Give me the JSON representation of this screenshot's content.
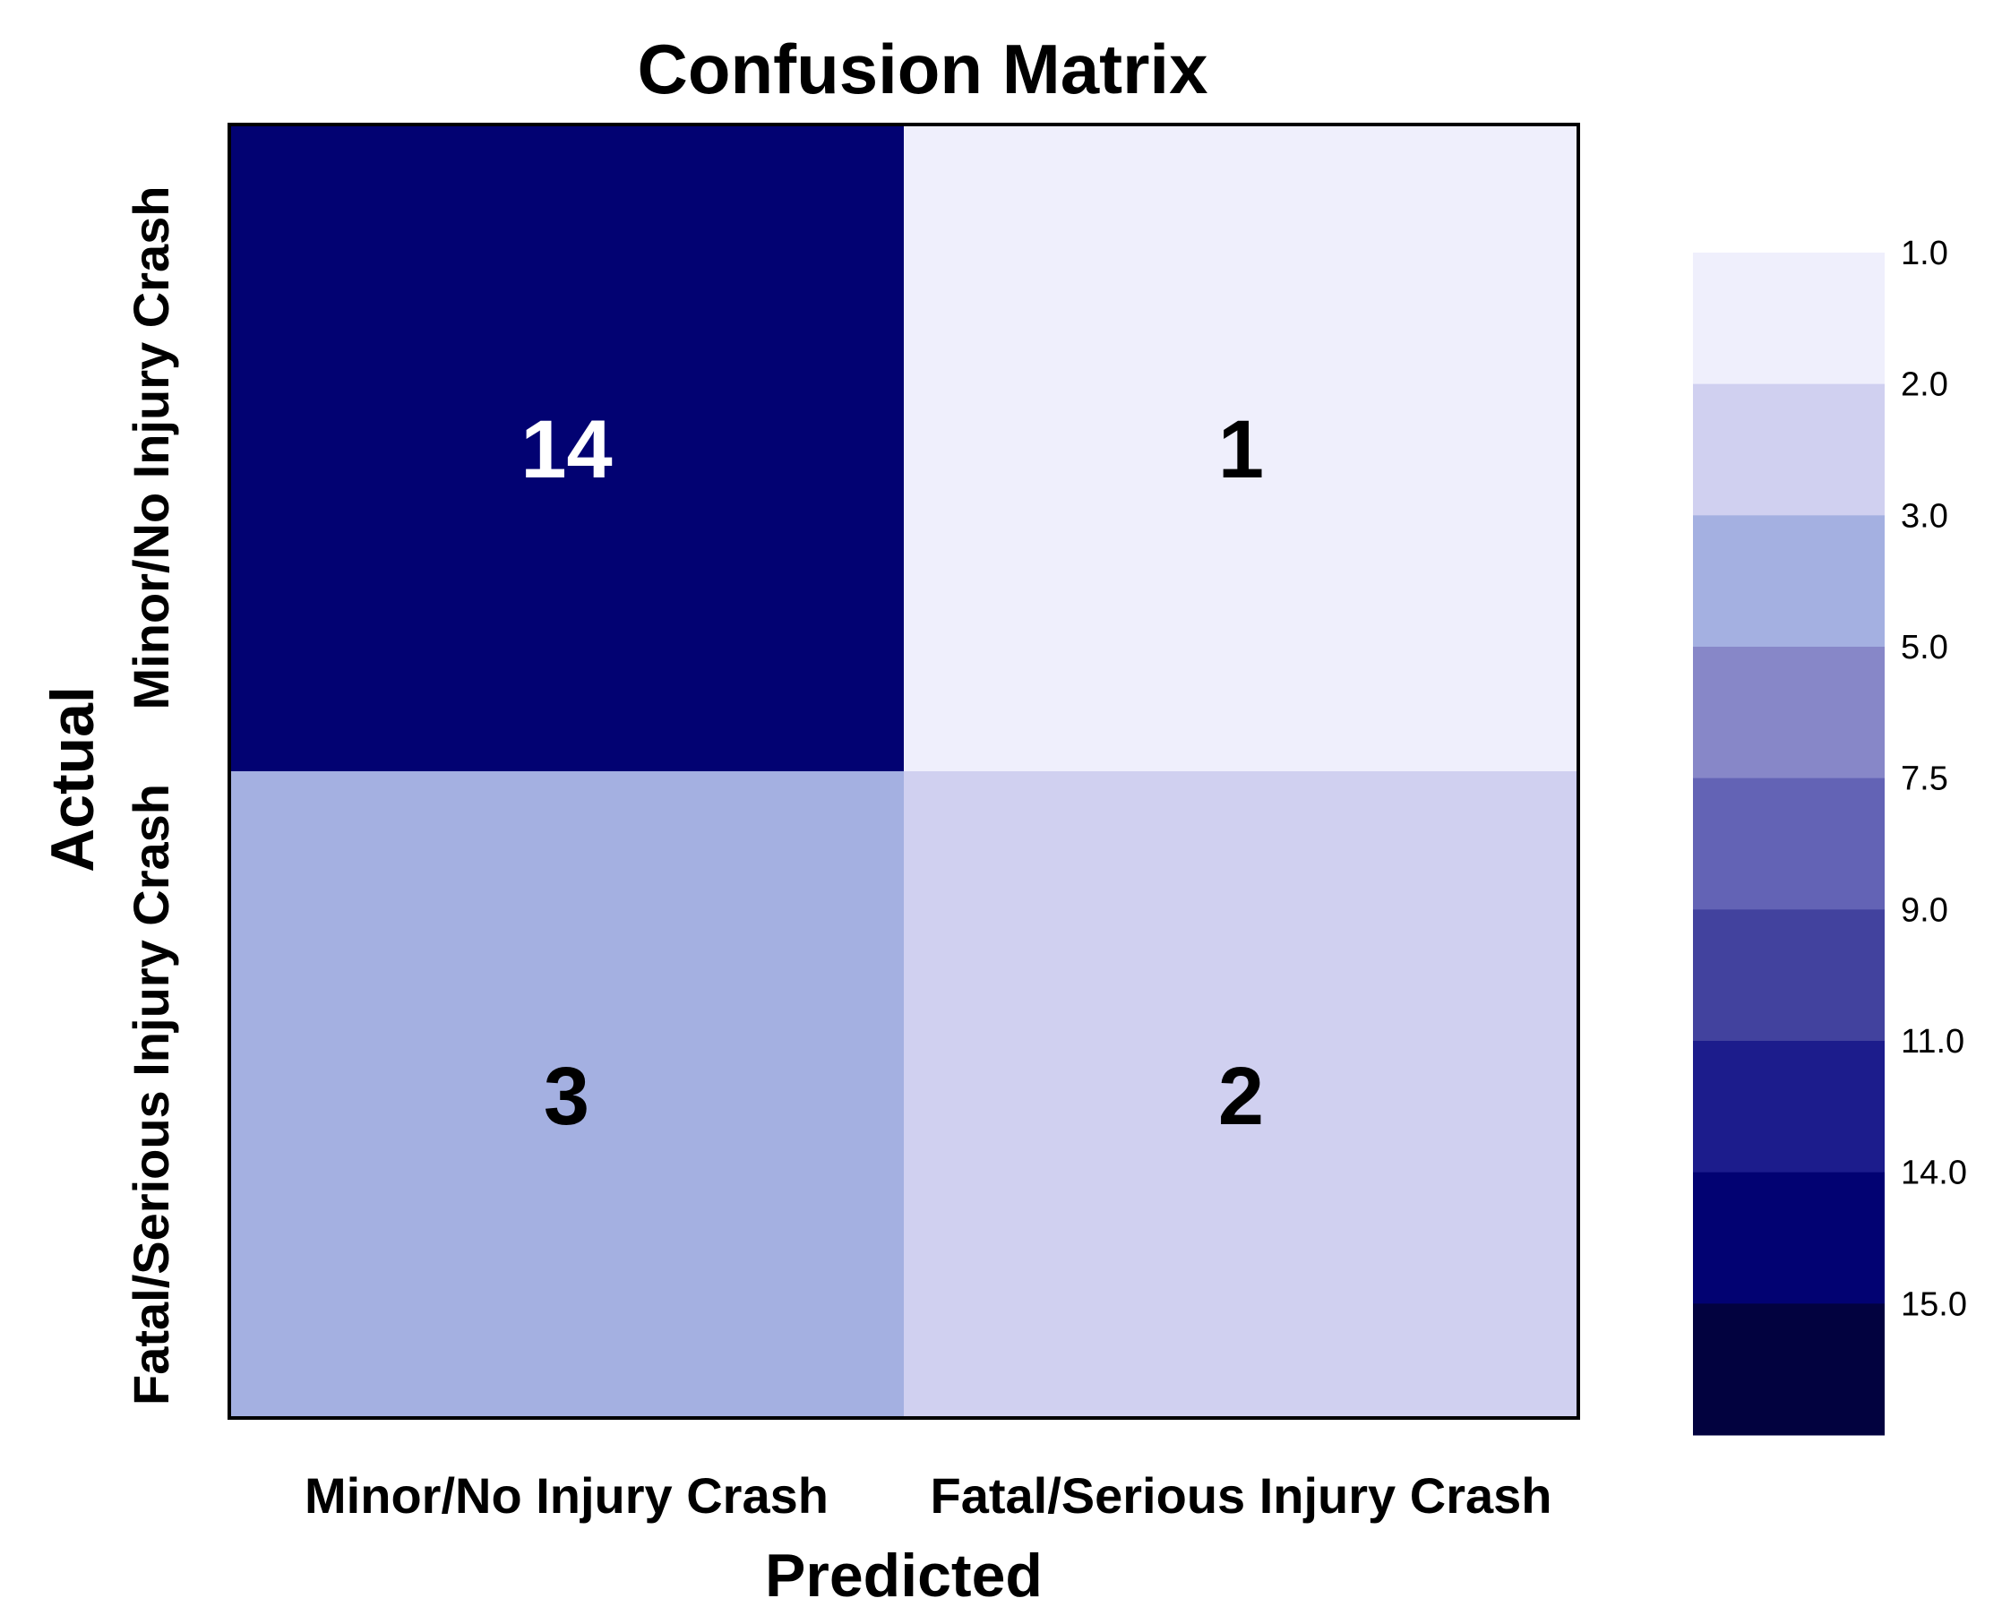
{
  "chart_data": {
    "type": "heatmap",
    "title": "Confusion Matrix",
    "xlabel": "Predicted",
    "ylabel": "Actual",
    "x_categories": [
      "Minor/No Injury Crash",
      "Fatal/Serious Injury Crash"
    ],
    "y_categories": [
      "Minor/No Injury Crash",
      "Fatal/Serious Injury Crash"
    ],
    "values": [
      [
        14,
        1
      ],
      [
        3,
        2
      ]
    ],
    "colorbar": {
      "labels": [
        "1.0",
        "2.0",
        "3.0",
        "5.0",
        "7.5",
        "9.0",
        "11.0",
        "14.0",
        "15.0"
      ],
      "colors": [
        "#efeffc",
        "#d0d0f0",
        "#a4b0e1",
        "#8787c8",
        "#6363b5",
        "#42429e",
        "#1c1c8c",
        "#020272",
        "#02023f"
      ]
    },
    "cell_colors": [
      [
        "#020272",
        "#efeffc"
      ],
      [
        "#a4b0e1",
        "#d0d0f0"
      ]
    ],
    "cell_text_colors": [
      [
        "#ffffff",
        "#000000"
      ],
      [
        "#000000",
        "#000000"
      ]
    ]
  }
}
